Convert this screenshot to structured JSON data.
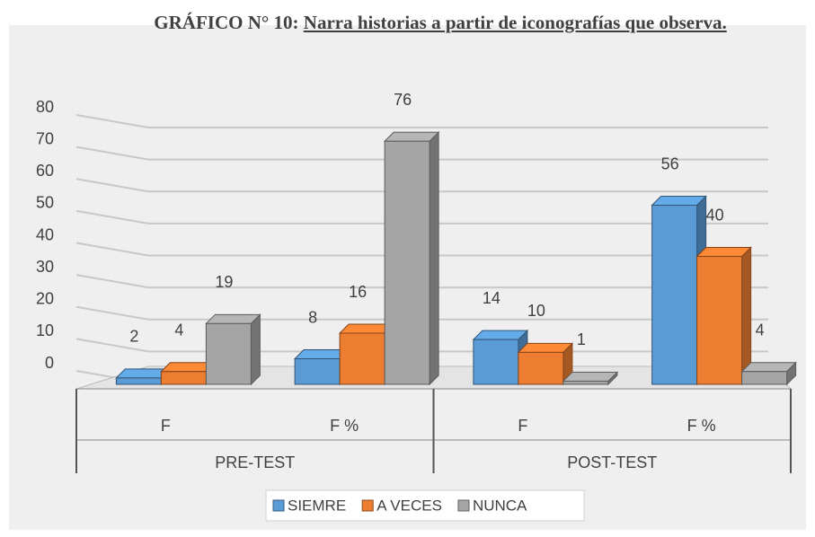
{
  "chart_data": {
    "type": "bar3d",
    "title_label": "GRÁFICO N° 10:",
    "title": "Narra historias a partir de iconografías que observa.",
    "categories": [
      "F",
      "F %",
      "F",
      "F %"
    ],
    "groups": [
      "PRE-TEST",
      "POST-TEST"
    ],
    "series": [
      {
        "name": "SIEMRE",
        "color": "#5b9bd5",
        "values": [
          2,
          8,
          14,
          56
        ]
      },
      {
        "name": "A VECES",
        "color": "#ed7d31",
        "values": [
          4,
          16,
          10,
          40
        ]
      },
      {
        "name": "NUNCA",
        "color": "#a5a5a5",
        "values": [
          19,
          76,
          1,
          4
        ]
      }
    ],
    "ylim": [
      0,
      80
    ],
    "yticks": [
      0,
      10,
      20,
      30,
      40,
      50,
      60,
      70,
      80
    ],
    "grid": true
  }
}
